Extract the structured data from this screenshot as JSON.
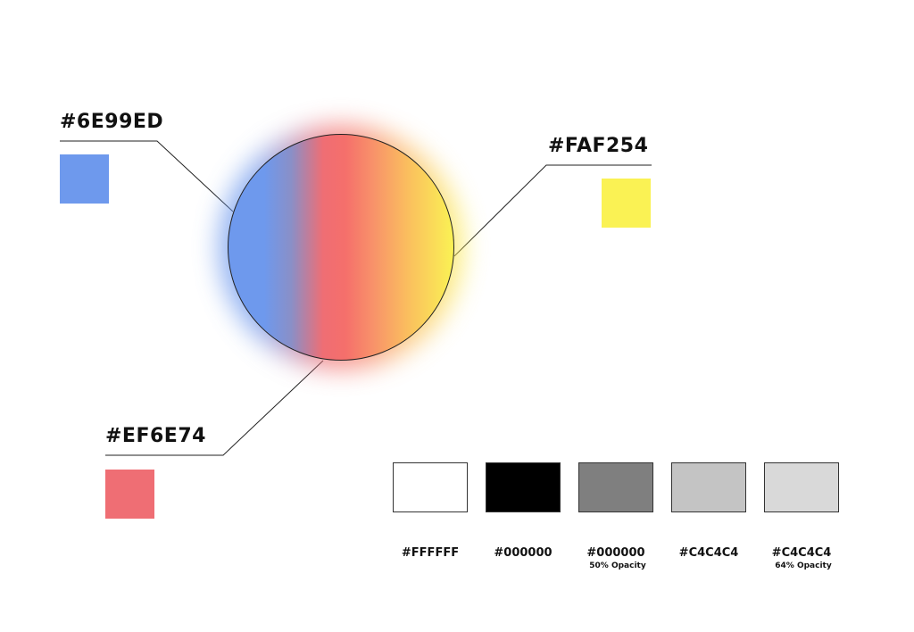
{
  "primary_colors": [
    {
      "hex": "#6E99ED",
      "color": "#6e99ed"
    },
    {
      "hex": "#FAF254",
      "color": "#faf254"
    },
    {
      "hex": "#EF6E74",
      "color": "#ef6e74"
    }
  ],
  "neutral_colors": [
    {
      "hex": "#FFFFFF",
      "note": "",
      "color": "#ffffff"
    },
    {
      "hex": "#000000",
      "note": "",
      "color": "#000000"
    },
    {
      "hex": "#000000",
      "note": "50% Opacity",
      "color": "rgba(0,0,0,0.5)"
    },
    {
      "hex": "#C4C4C4",
      "note": "",
      "color": "#c4c4c4"
    },
    {
      "hex": "#C4C4C4",
      "note": "64% Opacity",
      "color": "rgba(196,196,196,0.64)"
    }
  ],
  "gradient_stops": [
    "#6e99ed",
    "#ef6e74",
    "#faf254"
  ]
}
